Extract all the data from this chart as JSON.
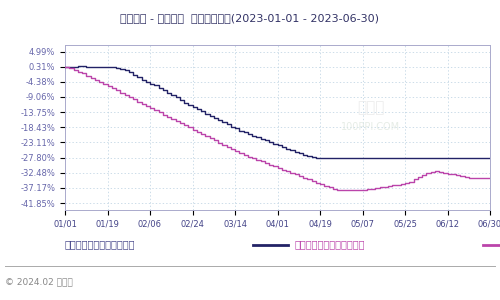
{
  "title": "针叶木浆 - 阔叶木浆  价格趋势比较(2023-01-01 - 2023-06-30)",
  "background_color": "#ffffff",
  "plot_bg_color": "#ffffff",
  "grid_color": "#b8cfe0",
  "yticks": [
    4.99,
    0.31,
    -4.38,
    -9.06,
    -13.75,
    -18.43,
    -23.11,
    -27.8,
    -32.48,
    -37.17,
    -41.85
  ],
  "xtick_labels": [
    "01/01",
    "01/19",
    "02/06",
    "02/24",
    "03/14",
    "04/01",
    "04/19",
    "05/07",
    "05/25",
    "06/12",
    "06/30"
  ],
  "ylabel_color": "#6666aa",
  "xtick_color": "#444488",
  "line1_color": "#222266",
  "line2_color": "#bb44aa",
  "legend_line1": "针叶木浆现货价格变化幅度",
  "legend_line2": "阔叶木浆现货价格变化幅度",
  "legend_color1": "#444488",
  "legend_color2": "#bb44aa",
  "footer_text": "© 2024.02 生意社",
  "footer_color": "#888888",
  "line1_y": [
    0.31,
    0.31,
    0.35,
    0.4,
    0.4,
    0.31,
    0.31,
    0.31,
    0.31,
    0.25,
    0.2,
    0.1,
    0.0,
    -0.3,
    -0.8,
    -1.5,
    -2.2,
    -3.0,
    -3.8,
    -4.5,
    -5.0,
    -5.5,
    -6.2,
    -7.0,
    -7.8,
    -8.5,
    -9.2,
    -10.0,
    -10.8,
    -11.5,
    -12.2,
    -12.8,
    -13.5,
    -14.2,
    -14.8,
    -15.5,
    -16.2,
    -16.8,
    -17.5,
    -18.2,
    -18.8,
    -19.5,
    -20.0,
    -20.5,
    -21.0,
    -21.5,
    -22.0,
    -22.5,
    -23.0,
    -23.5,
    -24.0,
    -24.5,
    -25.0,
    -25.5,
    -26.0,
    -26.5,
    -27.0,
    -27.4,
    -27.7,
    -27.9,
    -28.0,
    -28.0,
    -27.8,
    -27.8,
    -27.8,
    -27.8,
    -27.8,
    -27.8,
    -27.8,
    -27.8,
    -27.8,
    -27.8,
    -27.8,
    -27.8,
    -27.8,
    -27.8,
    -27.8,
    -27.8,
    -27.8,
    -27.8,
    -27.8,
    -27.8,
    -27.8,
    -27.8,
    -27.8,
    -27.8,
    -27.8,
    -27.8,
    -27.8,
    -27.8,
    -27.8,
    -27.8,
    -27.8,
    -27.8,
    -27.8,
    -27.8,
    -27.8,
    -27.8,
    -27.8,
    -27.8,
    -27.8
  ],
  "line2_y": [
    0.1,
    -0.2,
    -0.6,
    -1.2,
    -1.8,
    -2.5,
    -3.2,
    -3.8,
    -4.5,
    -5.2,
    -5.8,
    -6.4,
    -7.0,
    -7.8,
    -8.5,
    -9.2,
    -9.8,
    -10.5,
    -11.2,
    -11.8,
    -12.5,
    -13.2,
    -13.8,
    -14.5,
    -15.2,
    -15.8,
    -16.5,
    -17.2,
    -17.8,
    -18.5,
    -19.2,
    -19.8,
    -20.5,
    -21.2,
    -21.8,
    -22.5,
    -23.2,
    -23.8,
    -24.5,
    -25.2,
    -25.8,
    -26.5,
    -27.0,
    -27.5,
    -28.0,
    -28.5,
    -29.0,
    -29.5,
    -30.0,
    -30.5,
    -31.0,
    -31.5,
    -32.0,
    -32.5,
    -33.0,
    -33.5,
    -34.0,
    -34.5,
    -35.0,
    -35.5,
    -36.0,
    -36.5,
    -37.0,
    -37.5,
    -37.8,
    -37.8,
    -37.8,
    -37.8,
    -37.8,
    -37.8,
    -37.8,
    -37.6,
    -37.4,
    -37.2,
    -37.0,
    -36.8,
    -36.6,
    -36.4,
    -36.2,
    -36.0,
    -35.8,
    -35.2,
    -34.5,
    -33.8,
    -33.2,
    -32.6,
    -32.2,
    -32.0,
    -32.2,
    -32.5,
    -32.8,
    -33.0,
    -33.2,
    -33.5,
    -33.8,
    -34.0,
    -34.0,
    -34.0,
    -34.0,
    -34.0,
    -34.0
  ]
}
